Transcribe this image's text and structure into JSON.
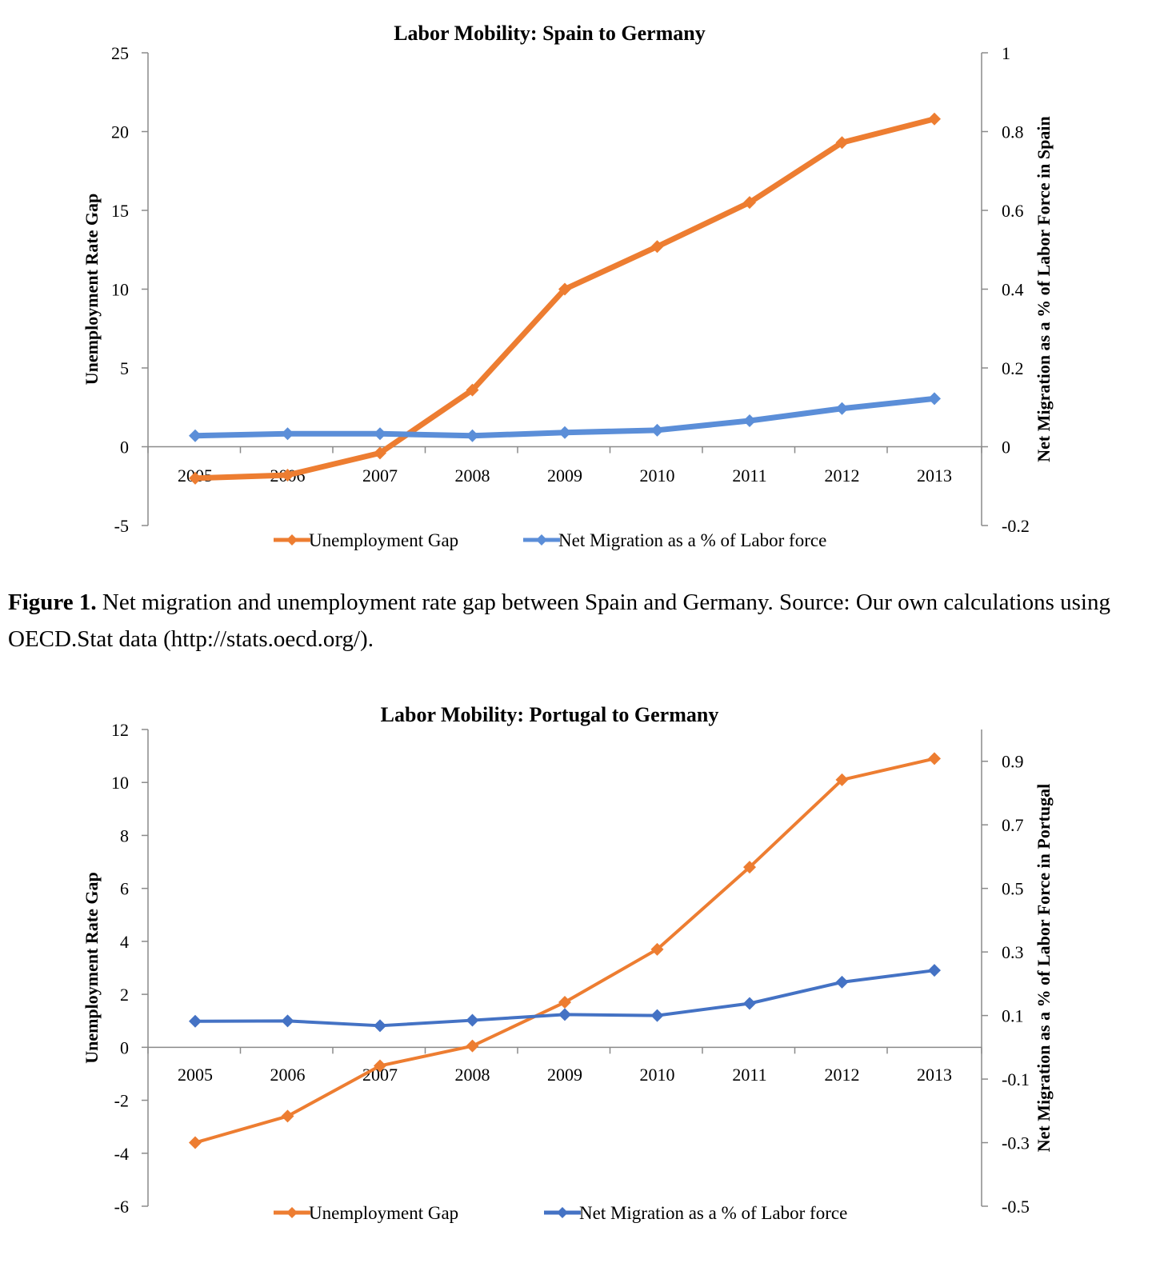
{
  "chart_data": [
    {
      "type": "line",
      "title": "Labor Mobility: Spain to Germany",
      "ylabel": "Unemployment Rate Gap",
      "y2label": "Net Migration as a % of Labor Force in Spain",
      "xlabel": "",
      "categories": [
        "2005",
        "2006",
        "2007",
        "2008",
        "2009",
        "2010",
        "2011",
        "2012",
        "2013"
      ],
      "ylim": [
        -5,
        25
      ],
      "yticks": [
        -5,
        0,
        5,
        10,
        15,
        20,
        25
      ],
      "y2lim": [
        -0.2,
        1
      ],
      "y2ticks": [
        -0.2,
        0,
        0.2,
        0.4,
        0.6,
        0.8,
        1
      ],
      "y2tick_labels": [
        "-0.2",
        "0",
        "0.2",
        "0.4",
        "0.6",
        "0.8",
        "1"
      ],
      "grid": false,
      "legend_position": "bottom",
      "series": [
        {
          "name": "Unemployment Gap",
          "axis": "left",
          "color": "#ED7D31",
          "values": [
            -2.0,
            -1.8,
            -0.4,
            3.6,
            10.0,
            12.7,
            15.5,
            19.3,
            20.8
          ]
        },
        {
          "name": "Net Migration as a % of Labor force",
          "axis": "right",
          "color": "#5B8ED8",
          "values": [
            0.028,
            0.033,
            0.033,
            0.028,
            0.036,
            0.042,
            0.066,
            0.097,
            0.122
          ]
        }
      ]
    },
    {
      "type": "line",
      "title": "Labor Mobility: Portugal to Germany",
      "ylabel": "Unemployment Rate Gap",
      "y2label": "Net Migration as a % of Labor Force in  Portugal",
      "xlabel": "",
      "categories": [
        "2005",
        "2006",
        "2007",
        "2008",
        "2009",
        "2010",
        "2011",
        "2012",
        "2013"
      ],
      "ylim": [
        -6,
        12
      ],
      "yticks": [
        -6,
        -4,
        -2,
        0,
        2,
        4,
        6,
        8,
        10,
        12
      ],
      "y2lim": [
        -0.5,
        1
      ],
      "y2ticks": [
        -0.5,
        -0.3,
        -0.1,
        0.1,
        0.3,
        0.5,
        0.7,
        0.9
      ],
      "y2tick_labels": [
        "-0.5",
        "-0.3",
        "-0.1",
        "0.1",
        "0.3",
        "0.5",
        "0.7",
        "0.9"
      ],
      "grid": false,
      "legend_position": "bottom",
      "series": [
        {
          "name": "Unemployment Gap",
          "axis": "left",
          "color": "#ED7D31",
          "values": [
            -3.6,
            -2.6,
            -0.7,
            0.05,
            1.7,
            3.7,
            6.8,
            10.1,
            10.9
          ]
        },
        {
          "name": "Net Migration as a % of Labor force",
          "axis": "right",
          "color": "#4472C4",
          "values": [
            0.082,
            0.083,
            0.068,
            0.085,
            0.103,
            0.1,
            0.138,
            0.205,
            0.242
          ]
        }
      ]
    }
  ],
  "caption": {
    "label": "Figure 1.",
    "text": " Net migration and unemployment rate gap between Spain and Germany. Source: Our own calculations using OECD.Stat data (http://stats.oecd.org/)."
  }
}
